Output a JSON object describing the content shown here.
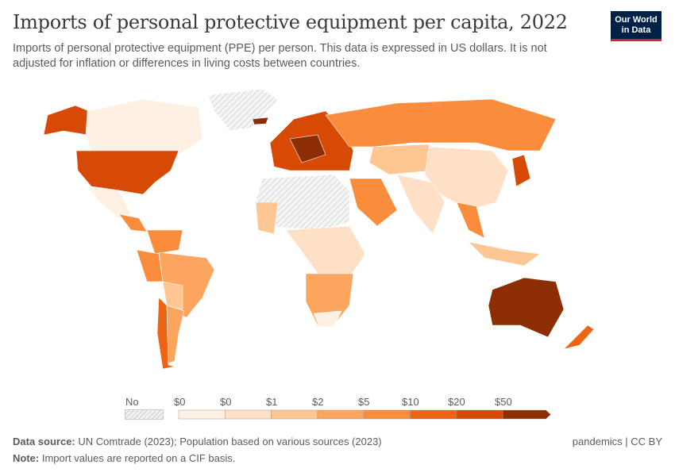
{
  "header": {
    "title": "Imports of personal protective equipment per capita, 2022",
    "subtitle": "Imports of personal protective equipment (PPE) per person. This data is expressed in US dollars. It is not adjusted for inflation or differences in living costs between countries.",
    "logo": "Our World in Data"
  },
  "legend": {
    "no_data": "No data",
    "bins": [
      "$0",
      "$0",
      "$1",
      "$2",
      "$5",
      "$10",
      "$20",
      "$50"
    ],
    "colors": [
      "#fef0e3",
      "#fde0c5",
      "#fdc692",
      "#fca55f",
      "#f98d3c",
      "#ec6414",
      "#d64a05",
      "#8c2d04"
    ],
    "no_data_color": "#e8e8e8"
  },
  "footer": {
    "source_label": "Data source:",
    "source": "UN Comtrade (2023); Population based on various sources (2023)",
    "note_label": "Note:",
    "note": "Import values are reported on a CIF basis.",
    "license": "pandemics | CC BY"
  }
}
